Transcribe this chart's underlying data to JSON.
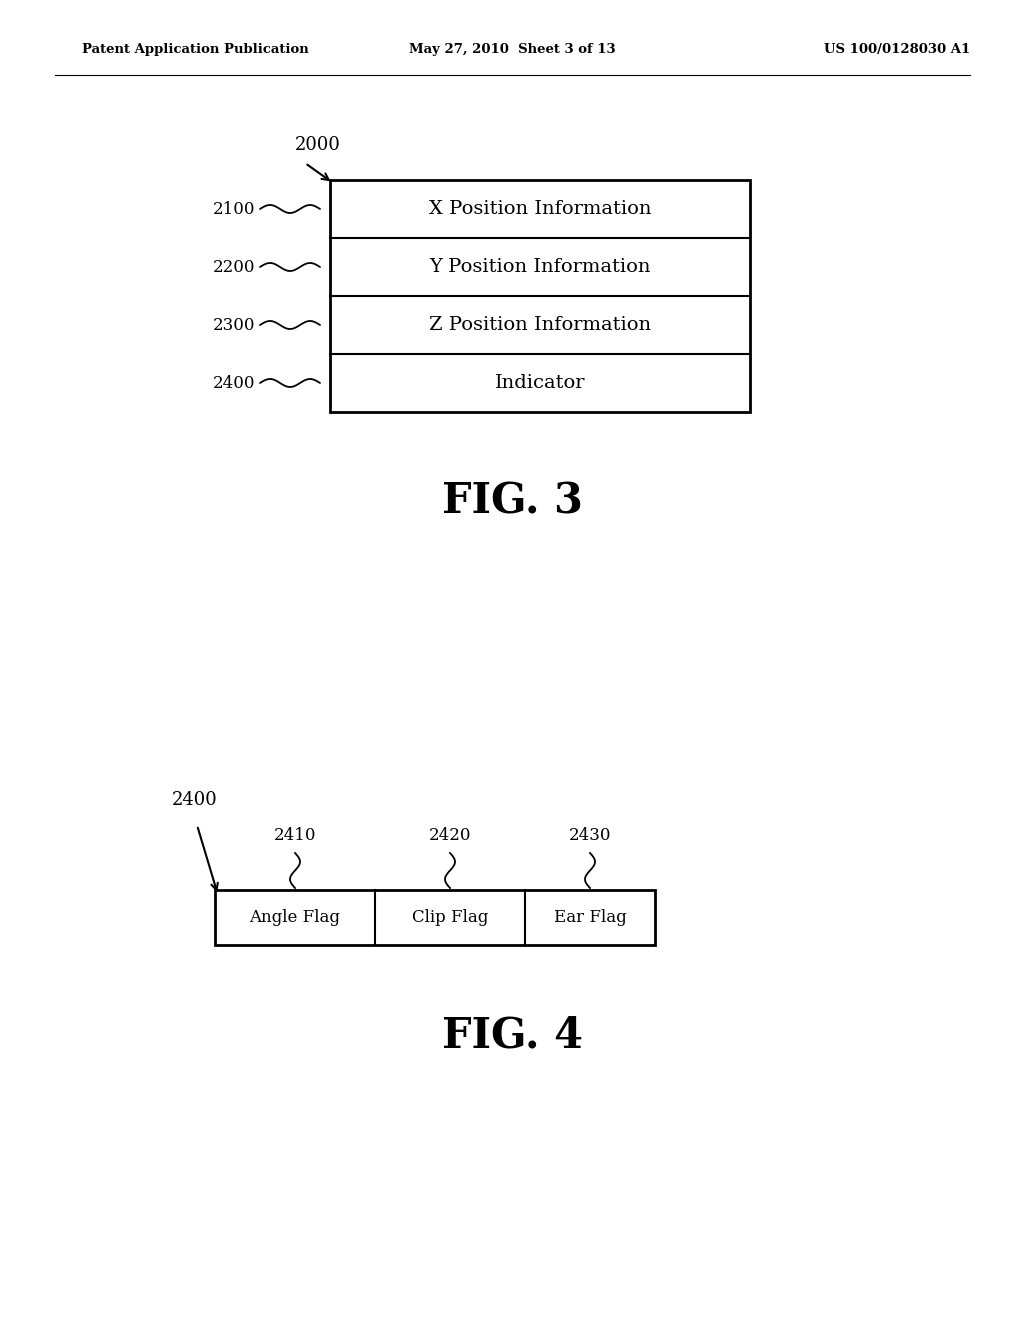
{
  "bg_color": "#ffffff",
  "header_left": "Patent Application Publication",
  "header_center": "May 27, 2010  Sheet 3 of 13",
  "header_right": "US 100/0128030 A1",
  "fig3_label": "FIG. 3",
  "fig4_label": "FIG. 4",
  "fig3_title_ref": "2000",
  "fig3_rows": [
    {
      "ref": "2100",
      "text": "X Position Information"
    },
    {
      "ref": "2200",
      "text": "Y Position Information"
    },
    {
      "ref": "2300",
      "text": "Z Position Information"
    },
    {
      "ref": "2400",
      "text": "Indicator"
    }
  ],
  "fig4_main_ref": "2400",
  "fig4_cells": [
    {
      "ref": "2410",
      "text": "Angle Flag"
    },
    {
      "ref": "2420",
      "text": "Clip Flag"
    },
    {
      "ref": "2430",
      "text": "Ear Flag"
    }
  ]
}
